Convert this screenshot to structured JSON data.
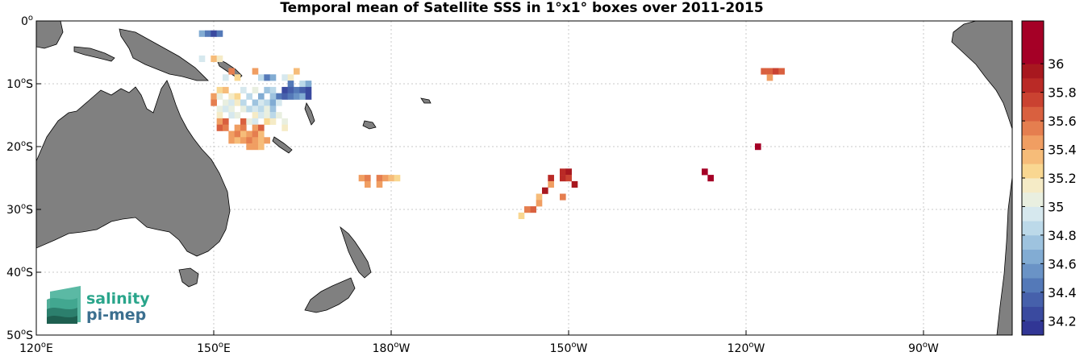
{
  "title": "Temporal mean of Satellite SSS in 1°x1° boxes over 2011-2015",
  "logo": {
    "line1": "salinity",
    "line2": "pi-mep"
  },
  "map": {
    "lon_range": [
      120,
      285
    ],
    "lat_range": [
      -50,
      0
    ],
    "x_ticks": [
      {
        "lon": 120,
        "deg": "120",
        "suffix": "E"
      },
      {
        "lon": 150,
        "deg": "150",
        "suffix": "E"
      },
      {
        "lon": 180,
        "deg": "180",
        "suffix": "W"
      },
      {
        "lon": 210,
        "deg": "150",
        "suffix": "W"
      },
      {
        "lon": 240,
        "deg": "120",
        "suffix": "W"
      },
      {
        "lon": 270,
        "deg": "90",
        "suffix": "W"
      }
    ],
    "y_ticks": [
      {
        "lat": 0,
        "deg": "0",
        "suffix": ""
      },
      {
        "lat": -10,
        "deg": "10",
        "suffix": "S"
      },
      {
        "lat": -20,
        "deg": "20",
        "suffix": "S"
      },
      {
        "lat": -30,
        "deg": "30",
        "suffix": "S"
      },
      {
        "lat": -40,
        "deg": "40",
        "suffix": "S"
      },
      {
        "lat": -50,
        "deg": "50",
        "suffix": "S"
      }
    ],
    "grid": true,
    "land_color": "#808080",
    "ocean_color": "#ffffff"
  },
  "colorbar": {
    "min": 34.1,
    "max": 36.3,
    "step": 0.1,
    "ticks": [
      34.2,
      34.4,
      34.6,
      34.8,
      35,
      35.2,
      35.4,
      35.6,
      35.8,
      36
    ],
    "tick_labels": [
      "34.2",
      "34.4",
      "34.6",
      "34.8",
      "35",
      "35.2",
      "35.4",
      "35.6",
      "35.8",
      "36"
    ],
    "colors": [
      "#313695",
      "#3a4a9f",
      "#4660ab",
      "#5479b8",
      "#6a93c6",
      "#82acd3",
      "#9ec3df",
      "#bcd9e9",
      "#d6e8ee",
      "#e9efe0",
      "#f5ebc6",
      "#f9d791",
      "#f6bc79",
      "#f09e62",
      "#e57e4f",
      "#d9603f",
      "#ca4231",
      "#ba2a26",
      "#a8181f",
      "#a50026",
      "#a50026",
      "#a50026"
    ]
  },
  "chart_data": {
    "type": "heatmap",
    "variable": "Satellite SSS",
    "cell_size_deg": 1,
    "cells": [
      {
        "lon": 148,
        "lat": -2,
        "v": 34.6
      },
      {
        "lon": 149,
        "lat": -2,
        "v": 34.4
      },
      {
        "lon": 150,
        "lat": -2,
        "v": 34.2
      },
      {
        "lon": 151,
        "lat": -2,
        "v": 34.4
      },
      {
        "lon": 148,
        "lat": -6,
        "v": 34.9
      },
      {
        "lon": 150,
        "lat": -6,
        "v": 35.3
      },
      {
        "lon": 151,
        "lat": -6,
        "v": 35.1
      },
      {
        "lon": 153,
        "lat": -8,
        "v": 35.5
      },
      {
        "lon": 152,
        "lat": -9,
        "v": 34.9
      },
      {
        "lon": 154,
        "lat": -9,
        "v": 35.2
      },
      {
        "lon": 157,
        "lat": -8,
        "v": 35.4
      },
      {
        "lon": 158,
        "lat": -9,
        "v": 34.8
      },
      {
        "lon": 159,
        "lat": -9,
        "v": 34.4
      },
      {
        "lon": 160,
        "lat": -9,
        "v": 34.6
      },
      {
        "lon": 162,
        "lat": -9,
        "v": 34.9
      },
      {
        "lon": 163,
        "lat": -9,
        "v": 35.1
      },
      {
        "lon": 164,
        "lat": -8,
        "v": 35.3
      },
      {
        "lon": 163,
        "lat": -10,
        "v": 34.4
      },
      {
        "lon": 165,
        "lat": -10,
        "v": 34.8
      },
      {
        "lon": 166,
        "lat": -10,
        "v": 34.6
      },
      {
        "lon": 162,
        "lat": -11,
        "v": 34.2
      },
      {
        "lon": 163,
        "lat": -11,
        "v": 34.3
      },
      {
        "lon": 164,
        "lat": -11,
        "v": 34.4
      },
      {
        "lon": 165,
        "lat": -11,
        "v": 34.3
      },
      {
        "lon": 166,
        "lat": -11,
        "v": 34.2
      },
      {
        "lon": 161,
        "lat": -12,
        "v": 34.4
      },
      {
        "lon": 162,
        "lat": -12,
        "v": 34.3
      },
      {
        "lon": 163,
        "lat": -12,
        "v": 34.4
      },
      {
        "lon": 164,
        "lat": -12,
        "v": 34.5
      },
      {
        "lon": 165,
        "lat": -12,
        "v": 34.6
      },
      {
        "lon": 166,
        "lat": -12,
        "v": 34.2
      },
      {
        "lon": 151,
        "lat": -11,
        "v": 35.2
      },
      {
        "lon": 152,
        "lat": -11,
        "v": 35.3
      },
      {
        "lon": 155,
        "lat": -11,
        "v": 34.9
      },
      {
        "lon": 157,
        "lat": -11,
        "v": 35.0
      },
      {
        "lon": 159,
        "lat": -11,
        "v": 34.7
      },
      {
        "lon": 160,
        "lat": -11,
        "v": 34.8
      },
      {
        "lon": 150,
        "lat": -12,
        "v": 35.4
      },
      {
        "lon": 151,
        "lat": -12,
        "v": 35.0
      },
      {
        "lon": 153,
        "lat": -12,
        "v": 35.1
      },
      {
        "lon": 154,
        "lat": -12,
        "v": 35.2
      },
      {
        "lon": 156,
        "lat": -12,
        "v": 34.8
      },
      {
        "lon": 158,
        "lat": -12,
        "v": 34.6
      },
      {
        "lon": 160,
        "lat": -12,
        "v": 34.7
      },
      {
        "lon": 150,
        "lat": -13,
        "v": 35.5
      },
      {
        "lon": 152,
        "lat": -13,
        "v": 35.0
      },
      {
        "lon": 153,
        "lat": -13,
        "v": 34.9
      },
      {
        "lon": 154,
        "lat": -13,
        "v": 35.1
      },
      {
        "lon": 155,
        "lat": -13,
        "v": 34.8
      },
      {
        "lon": 157,
        "lat": -13,
        "v": 34.7
      },
      {
        "lon": 158,
        "lat": -13,
        "v": 34.9
      },
      {
        "lon": 159,
        "lat": -13,
        "v": 34.8
      },
      {
        "lon": 160,
        "lat": -13,
        "v": 34.6
      },
      {
        "lon": 161,
        "lat": -13,
        "v": 34.9
      },
      {
        "lon": 151,
        "lat": -14,
        "v": 35.0
      },
      {
        "lon": 152,
        "lat": -14,
        "v": 34.9
      },
      {
        "lon": 153,
        "lat": -14,
        "v": 35.0
      },
      {
        "lon": 155,
        "lat": -14,
        "v": 35.0
      },
      {
        "lon": 156,
        "lat": -14,
        "v": 34.8
      },
      {
        "lon": 157,
        "lat": -14,
        "v": 34.9
      },
      {
        "lon": 158,
        "lat": -14,
        "v": 34.8
      },
      {
        "lon": 159,
        "lat": -14,
        "v": 35.0
      },
      {
        "lon": 160,
        "lat": -14,
        "v": 34.7
      },
      {
        "lon": 151,
        "lat": -15,
        "v": 35.1
      },
      {
        "lon": 153,
        "lat": -15,
        "v": 34.9
      },
      {
        "lon": 154,
        "lat": -15,
        "v": 35.0
      },
      {
        "lon": 157,
        "lat": -15,
        "v": 35.1
      },
      {
        "lon": 158,
        "lat": -15,
        "v": 34.9
      },
      {
        "lon": 159,
        "lat": -15,
        "v": 35.0
      },
      {
        "lon": 160,
        "lat": -15,
        "v": 34.8
      },
      {
        "lon": 161,
        "lat": -15,
        "v": 35.0
      },
      {
        "lon": 151,
        "lat": -16,
        "v": 35.4
      },
      {
        "lon": 152,
        "lat": -16,
        "v": 35.6
      },
      {
        "lon": 155,
        "lat": -16,
        "v": 35.6
      },
      {
        "lon": 156,
        "lat": -16,
        "v": 35.0
      },
      {
        "lon": 157,
        "lat": -16,
        "v": 34.9
      },
      {
        "lon": 159,
        "lat": -16,
        "v": 35.2
      },
      {
        "lon": 160,
        "lat": -16,
        "v": 35.1
      },
      {
        "lon": 162,
        "lat": -16,
        "v": 35.0
      },
      {
        "lon": 151,
        "lat": -17,
        "v": 35.6
      },
      {
        "lon": 152,
        "lat": -17,
        "v": 35.5
      },
      {
        "lon": 154,
        "lat": -17,
        "v": 35.4
      },
      {
        "lon": 155,
        "lat": -17,
        "v": 35.5
      },
      {
        "lon": 157,
        "lat": -17,
        "v": 35.4
      },
      {
        "lon": 158,
        "lat": -17,
        "v": 35.6
      },
      {
        "lon": 162,
        "lat": -17,
        "v": 35.1
      },
      {
        "lon": 153,
        "lat": -18,
        "v": 35.4
      },
      {
        "lon": 154,
        "lat": -18,
        "v": 35.5
      },
      {
        "lon": 155,
        "lat": -18,
        "v": 35.3
      },
      {
        "lon": 156,
        "lat": -18,
        "v": 35.4
      },
      {
        "lon": 157,
        "lat": -18,
        "v": 35.5
      },
      {
        "lon": 158,
        "lat": -18,
        "v": 35.3
      },
      {
        "lon": 153,
        "lat": -19,
        "v": 35.4
      },
      {
        "lon": 154,
        "lat": -19,
        "v": 35.3
      },
      {
        "lon": 155,
        "lat": -19,
        "v": 35.4
      },
      {
        "lon": 156,
        "lat": -19,
        "v": 35.5
      },
      {
        "lon": 157,
        "lat": -19,
        "v": 35.4
      },
      {
        "lon": 158,
        "lat": -19,
        "v": 35.3
      },
      {
        "lon": 159,
        "lat": -19,
        "v": 35.4
      },
      {
        "lon": 156,
        "lat": -20,
        "v": 35.4
      },
      {
        "lon": 157,
        "lat": -20,
        "v": 35.4
      },
      {
        "lon": 158,
        "lat": -20,
        "v": 35.3
      },
      {
        "lon": 175,
        "lat": -25,
        "v": 35.4
      },
      {
        "lon": 176,
        "lat": -25,
        "v": 35.5
      },
      {
        "lon": 178,
        "lat": -25,
        "v": 35.5
      },
      {
        "lon": 179,
        "lat": -25,
        "v": 35.4
      },
      {
        "lon": 180,
        "lat": -25,
        "v": 35.3
      },
      {
        "lon": 181,
        "lat": -25,
        "v": 35.2
      },
      {
        "lon": 176,
        "lat": -26,
        "v": 35.4
      },
      {
        "lon": 178,
        "lat": -26,
        "v": 35.4
      },
      {
        "lon": 209,
        "lat": -24,
        "v": 35.8
      },
      {
        "lon": 210,
        "lat": -24,
        "v": 35.9
      },
      {
        "lon": 209,
        "lat": -25,
        "v": 35.8
      },
      {
        "lon": 210,
        "lat": -25,
        "v": 35.7
      },
      {
        "lon": 207,
        "lat": -25,
        "v": 35.8
      },
      {
        "lon": 211,
        "lat": -26,
        "v": 35.9
      },
      {
        "lon": 207,
        "lat": -26,
        "v": 35.4
      },
      {
        "lon": 206,
        "lat": -27,
        "v": 35.9
      },
      {
        "lon": 209,
        "lat": -28,
        "v": 35.5
      },
      {
        "lon": 205,
        "lat": -28,
        "v": 35.3
      },
      {
        "lon": 205,
        "lat": -29,
        "v": 35.4
      },
      {
        "lon": 204,
        "lat": -30,
        "v": 35.6
      },
      {
        "lon": 203,
        "lat": -30,
        "v": 35.5
      },
      {
        "lon": 202,
        "lat": -31,
        "v": 35.2
      },
      {
        "lon": 243,
        "lat": -8,
        "v": 35.6
      },
      {
        "lon": 244,
        "lat": -8,
        "v": 35.6
      },
      {
        "lon": 245,
        "lat": -8,
        "v": 35.7
      },
      {
        "lon": 246,
        "lat": -8,
        "v": 35.6
      },
      {
        "lon": 244,
        "lat": -9,
        "v": 35.4
      },
      {
        "lon": 242,
        "lat": -20,
        "v": 36.1
      },
      {
        "lon": 233,
        "lat": -24,
        "v": 36.1
      },
      {
        "lon": 234,
        "lat": -25,
        "v": 36.1
      }
    ]
  }
}
